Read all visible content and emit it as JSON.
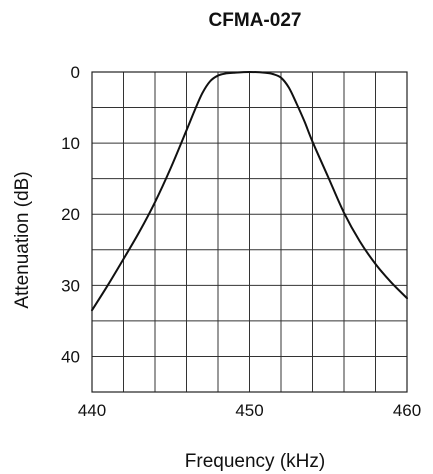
{
  "chart_data": {
    "type": "line",
    "title": "CFMA-027",
    "xlabel": "Frequency (kHz)",
    "ylabel": "Attenuation (dB)",
    "xlim": [
      440,
      460
    ],
    "ylim": [
      0,
      45
    ],
    "y_inverted": true,
    "grid": true,
    "x_ticks": [
      440,
      450,
      460
    ],
    "y_ticks": [
      0,
      10,
      20,
      30,
      40
    ],
    "x_grid_step": 2,
    "y_grid_step": 5,
    "series": [
      {
        "x": [
          440.0,
          441.0,
          442.0,
          443.0,
          444.0,
          445.0,
          446.0,
          446.5,
          447.0,
          447.5,
          448.0,
          448.5,
          449.0,
          450.0,
          451.0,
          451.5,
          452.0,
          452.5,
          453.0,
          453.5,
          454.0,
          455.0,
          456.0,
          457.0,
          458.0,
          459.0,
          460.0
        ],
        "y": [
          33.5,
          30.0,
          26.3,
          22.5,
          18.3,
          13.5,
          8.2,
          5.5,
          3.0,
          1.3,
          0.5,
          0.2,
          0.1,
          0.0,
          0.1,
          0.3,
          0.8,
          2.2,
          4.5,
          7.0,
          9.8,
          14.8,
          19.8,
          23.8,
          27.0,
          29.6,
          31.8
        ]
      }
    ],
    "line_color": "#111111"
  }
}
